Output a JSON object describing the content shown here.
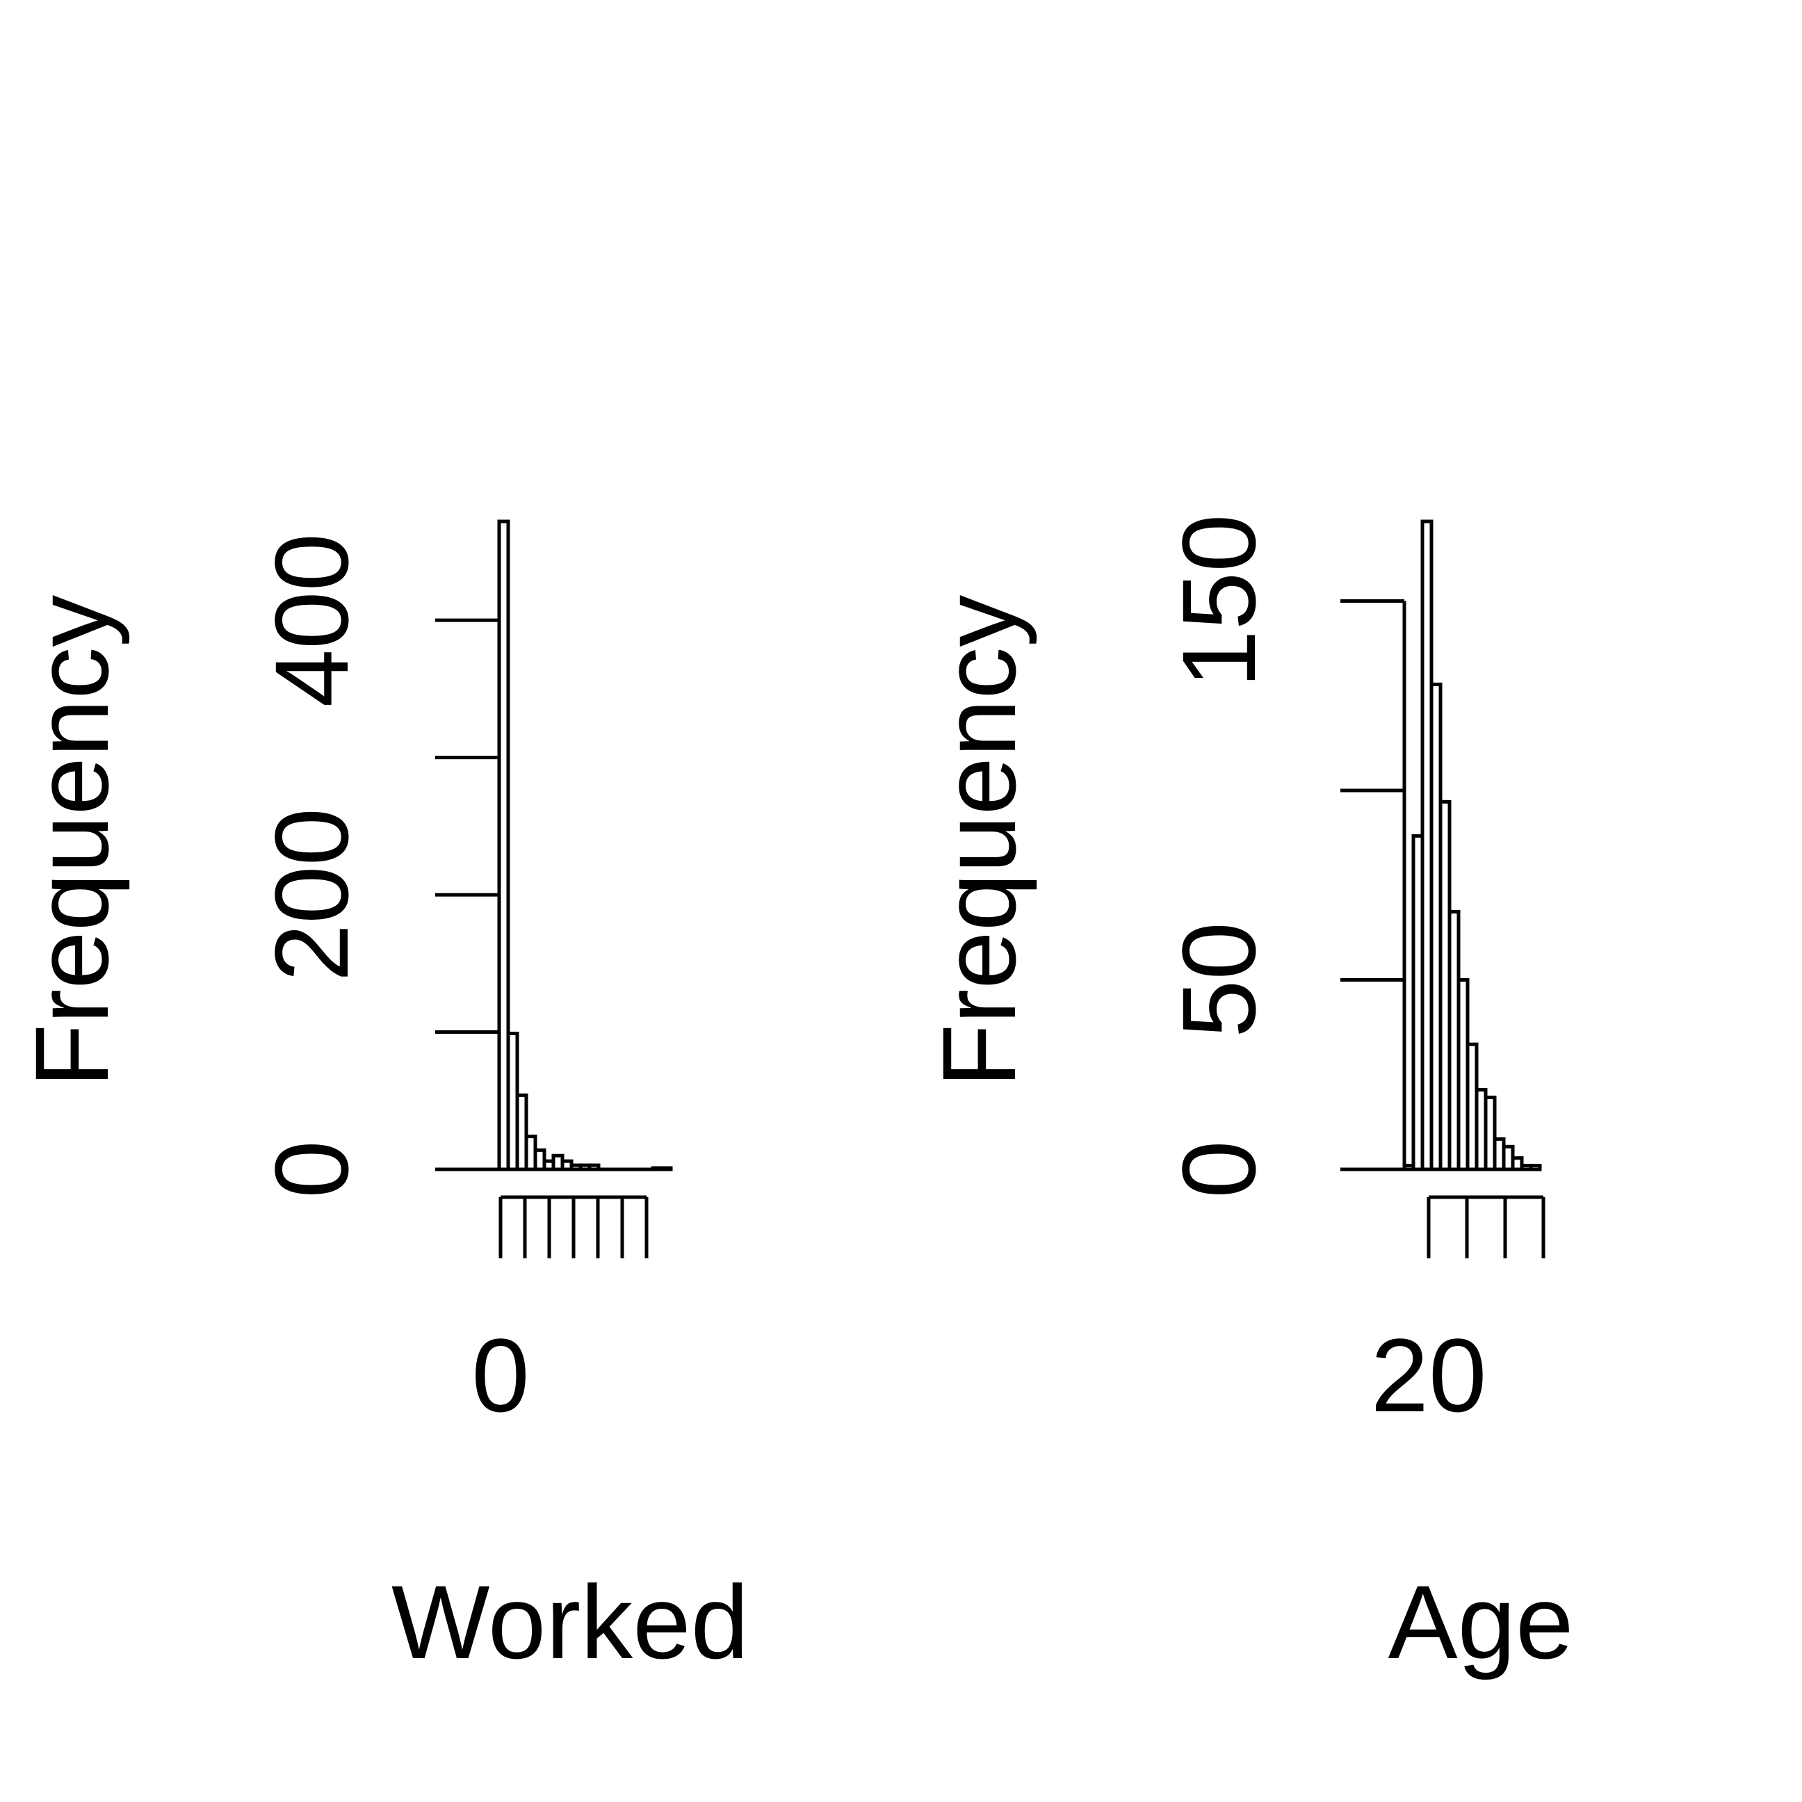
{
  "colors": {
    "ink": "#000000",
    "background": "#ffffff"
  },
  "chart_data": [
    {
      "type": "bar",
      "title": "",
      "xlabel": "Worked",
      "ylabel": "Frequency",
      "y_ticks": [
        "0",
        "200",
        "400"
      ],
      "x_tick_labels": [
        "0"
      ],
      "ylim": [
        0,
        472
      ],
      "bins": [
        {
          "x": 0,
          "value": 472
        },
        {
          "x": 1,
          "value": 99
        },
        {
          "x": 2,
          "value": 54
        },
        {
          "x": 3,
          "value": 24
        },
        {
          "x": 4,
          "value": 14
        },
        {
          "x": 5,
          "value": 6
        },
        {
          "x": 6,
          "value": 10
        },
        {
          "x": 7,
          "value": 6
        },
        {
          "x": 8,
          "value": 3
        },
        {
          "x": 9,
          "value": 3
        },
        {
          "x": 10,
          "value": 3
        },
        {
          "x": 11,
          "value": 0
        },
        {
          "x": 12,
          "value": 0
        },
        {
          "x": 13,
          "value": 0
        },
        {
          "x": 14,
          "value": 0
        },
        {
          "x": 15,
          "value": 0
        },
        {
          "x": 16,
          "value": 0
        },
        {
          "x": 17,
          "value": 1
        },
        {
          "x": 18,
          "value": 1
        }
      ],
      "x_ticks": [
        0,
        3,
        6,
        9,
        12,
        15,
        18
      ],
      "grid": false,
      "legend": "none"
    },
    {
      "type": "bar",
      "title": "",
      "xlabel": "Age",
      "ylabel": "Frequency",
      "y_ticks": [
        "0",
        "50",
        "150"
      ],
      "x_tick_labels": [
        "20"
      ],
      "ylim": [
        0,
        171
      ],
      "bins": [
        {
          "x": 18,
          "value": 1
        },
        {
          "x": 19,
          "value": 88
        },
        {
          "x": 20,
          "value": 171
        },
        {
          "x": 21,
          "value": 128
        },
        {
          "x": 22,
          "value": 97
        },
        {
          "x": 23,
          "value": 68
        },
        {
          "x": 24,
          "value": 50
        },
        {
          "x": 25,
          "value": 33
        },
        {
          "x": 26,
          "value": 21
        },
        {
          "x": 27,
          "value": 19
        },
        {
          "x": 28,
          "value": 8
        },
        {
          "x": 29,
          "value": 6
        },
        {
          "x": 30,
          "value": 3
        },
        {
          "x": 31,
          "value": 1
        },
        {
          "x": 32,
          "value": 1
        }
      ],
      "x_ticks": [
        20,
        25,
        30,
        35
      ],
      "grid": false,
      "legend": "none"
    }
  ]
}
